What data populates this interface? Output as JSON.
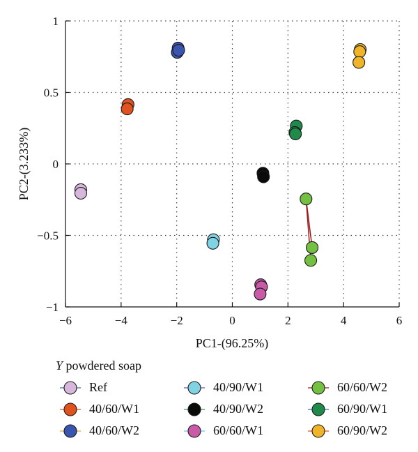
{
  "chart_data": {
    "type": "scatter",
    "xlabel": "PC1-(96.25%)",
    "ylabel": "PC2-(3.233%)",
    "xlim": [
      -6,
      6
    ],
    "ylim": [
      -1,
      1
    ],
    "x_ticks": [
      "−6",
      "−4",
      "−2",
      "0",
      "2",
      "4",
      "6"
    ],
    "y_ticks": [
      "−1",
      "−0.5",
      "0",
      "0.5",
      "1"
    ],
    "grid": true,
    "legend_title_italic": "Y",
    "legend_title": "powdered soap",
    "legend_placement": "bottom",
    "series": [
      {
        "name": "Ref",
        "color": "#d7b8dc",
        "line_color": "#3a6fb5",
        "points": [
          [
            -5.45,
            -0.18
          ],
          [
            -5.45,
            -0.205
          ]
        ]
      },
      {
        "name": "40/60/W1",
        "color": "#e0531f",
        "line_color": "#e0531f",
        "points": [
          [
            -3.75,
            0.415
          ],
          [
            -3.78,
            0.385
          ]
        ]
      },
      {
        "name": "40/60/W2",
        "color": "#3a55b0",
        "line_color": "#e8a33a",
        "points": [
          [
            -1.95,
            0.81
          ],
          [
            -1.98,
            0.78
          ],
          [
            -1.93,
            0.795
          ]
        ]
      },
      {
        "name": "40/90/W1",
        "color": "#7fd3e3",
        "line_color": "#8e4aa6",
        "points": [
          [
            -0.68,
            -0.53
          ],
          [
            -0.7,
            -0.555
          ]
        ]
      },
      {
        "name": "40/90/W2",
        "color": "#0a0a0a",
        "line_color": "#2aa24a",
        "points": [
          [
            1.1,
            -0.065
          ],
          [
            1.12,
            -0.09
          ]
        ]
      },
      {
        "name": "60/60/W1",
        "color": "#c85aa8",
        "line_color": "#6cc3e0",
        "points": [
          [
            1.02,
            -0.845
          ],
          [
            1.05,
            -0.86
          ],
          [
            1.0,
            -0.91
          ]
        ]
      },
      {
        "name": "60/60/W2",
        "color": "#74c043",
        "line_color": "#9b1b1b",
        "points": [
          [
            2.65,
            -0.245
          ],
          [
            2.87,
            -0.585
          ],
          [
            2.82,
            -0.675
          ]
        ]
      },
      {
        "name": "60/90/W1",
        "color": "#1f8a4a",
        "line_color": "#3a6fb5",
        "points": [
          [
            2.3,
            0.265
          ],
          [
            2.25,
            0.22
          ],
          [
            2.27,
            0.21
          ]
        ]
      },
      {
        "name": "60/90/W2",
        "color": "#f0b429",
        "line_color": "#e0531f",
        "points": [
          [
            4.6,
            0.8
          ],
          [
            4.58,
            0.785
          ],
          [
            4.55,
            0.71
          ]
        ]
      }
    ],
    "connector_lines": [
      {
        "series": "60/60/W2",
        "color": "#9b1b1b",
        "from": [
          2.65,
          -0.245
        ],
        "to": [
          2.87,
          -0.585
        ]
      },
      {
        "series": "60/60/W2",
        "color": "#9b1b1b",
        "from": [
          2.65,
          -0.245
        ],
        "to": [
          2.82,
          -0.675
        ]
      }
    ]
  }
}
